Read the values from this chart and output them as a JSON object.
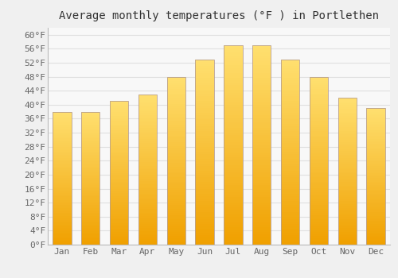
{
  "title": "Average monthly temperatures (°F ) in Portlethen",
  "months": [
    "Jan",
    "Feb",
    "Mar",
    "Apr",
    "May",
    "Jun",
    "Jul",
    "Aug",
    "Sep",
    "Oct",
    "Nov",
    "Dec"
  ],
  "values": [
    38,
    38,
    41,
    43,
    48,
    53,
    57,
    57,
    53,
    48,
    42,
    39
  ],
  "bar_color_bottom": "#F5A800",
  "bar_color_mid": "#FFBB20",
  "bar_color_top": "#FFD966",
  "bar_edge_color": "#A09070",
  "background_color": "#F0F0F0",
  "plot_bg_color": "#F8F8F8",
  "grid_color": "#E0E0E0",
  "ylim": [
    0,
    62
  ],
  "yticks": [
    0,
    4,
    8,
    12,
    16,
    20,
    24,
    28,
    32,
    36,
    40,
    44,
    48,
    52,
    56,
    60
  ],
  "ytick_labels": [
    "0°F",
    "4°F",
    "8°F",
    "12°F",
    "16°F",
    "20°F",
    "24°F",
    "28°F",
    "32°F",
    "36°F",
    "40°F",
    "44°F",
    "48°F",
    "52°F",
    "56°F",
    "60°F"
  ],
  "title_fontsize": 10,
  "tick_fontsize": 8,
  "tick_font_family": "monospace"
}
